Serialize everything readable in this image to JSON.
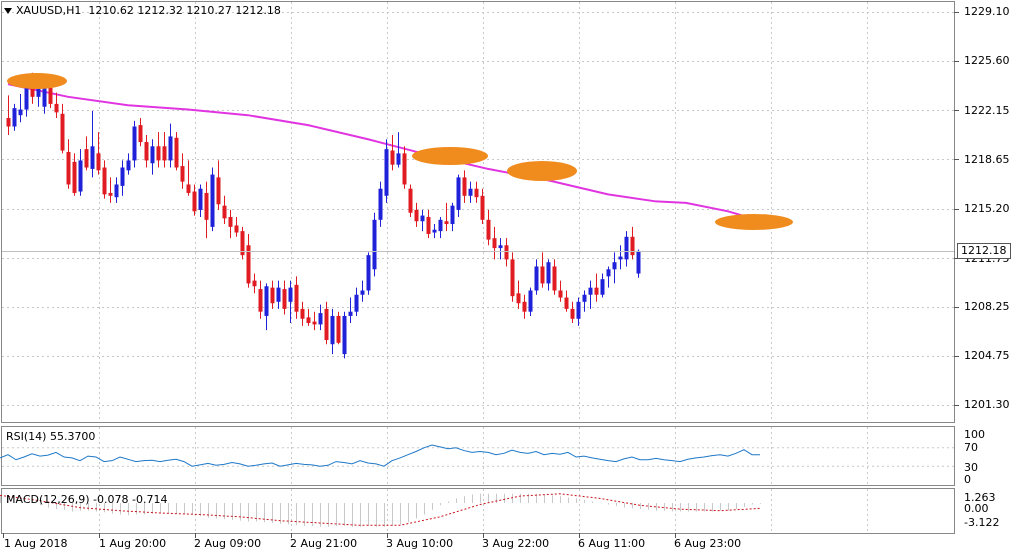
{
  "header": {
    "symbol": "XAUUSD,H1",
    "ohlc": "1210.62 1212.32 1210.27 1212.18"
  },
  "colors": {
    "bull": "#1f22d8",
    "bear": "#e01b22",
    "ma": "#e134e1",
    "highlight": "#f08c1e",
    "rsi": "#1e78c8",
    "macd_signal": "#c8141e",
    "macd_hist": "#c8c8c8"
  },
  "price_axis": [
    "1229.10",
    "1225.60",
    "1222.15",
    "1218.65",
    "1215.20",
    "1211.75",
    "1208.25",
    "1204.75",
    "1201.30"
  ],
  "current_price": "1212.18",
  "rsi": {
    "label": "RSI(14) 55.3700",
    "levels": [
      "100",
      "70",
      "30",
      "0"
    ]
  },
  "macd": {
    "label": "MACD(12,26,9) -0.078 -0.714",
    "levels": [
      "1.263",
      "0.00",
      "-3.122"
    ]
  },
  "time_axis": [
    "1 Aug 2018",
    "1 Aug 20:00",
    "2 Aug 09:00",
    "2 Aug 21:00",
    "3 Aug 10:00",
    "3 Aug 22:00",
    "6 Aug 11:00",
    "6 Aug 23:00"
  ],
  "chart_data": {
    "type": "candlestick",
    "ylim": [
      1201.3,
      1229.1
    ],
    "candles": [
      [
        1221.6,
        1223.2,
        1220.4,
        1221.0
      ],
      [
        1221.0,
        1222.6,
        1220.7,
        1222.3
      ],
      [
        1221.8,
        1223.3,
        1221.3,
        1222.2
      ],
      [
        1222.2,
        1224.7,
        1221.7,
        1224.2
      ],
      [
        1224.2,
        1224.8,
        1222.6,
        1223.1
      ],
      [
        1223.1,
        1224.3,
        1222.4,
        1223.8
      ],
      [
        1222.4,
        1224.6,
        1221.9,
        1224.4
      ],
      [
        1223.9,
        1224.7,
        1222.3,
        1222.6
      ],
      [
        1222.6,
        1223.4,
        1221.6,
        1222.0
      ],
      [
        1221.9,
        1222.6,
        1219.1,
        1219.3
      ],
      [
        1219.2,
        1220.1,
        1216.6,
        1216.9
      ],
      [
        1218.5,
        1219.1,
        1216.1,
        1216.3
      ],
      [
        1216.4,
        1219.4,
        1216.1,
        1218.6
      ],
      [
        1219.4,
        1220.3,
        1217.9,
        1218.1
      ],
      [
        1218.0,
        1222.1,
        1217.4,
        1219.6
      ],
      [
        1219.1,
        1220.6,
        1217.6,
        1217.9
      ],
      [
        1218.1,
        1218.6,
        1215.9,
        1216.2
      ],
      [
        1216.3,
        1217.4,
        1215.6,
        1216.1
      ],
      [
        1216.0,
        1217.4,
        1215.6,
        1216.9
      ],
      [
        1216.8,
        1218.6,
        1216.1,
        1218.1
      ],
      [
        1217.9,
        1219.1,
        1217.6,
        1218.6
      ],
      [
        1218.6,
        1221.4,
        1218.1,
        1221.0
      ],
      [
        1221.1,
        1221.6,
        1219.6,
        1219.9
      ],
      [
        1219.9,
        1220.4,
        1218.1,
        1218.6
      ],
      [
        1218.4,
        1220.1,
        1217.6,
        1219.6
      ],
      [
        1219.6,
        1220.6,
        1218.1,
        1218.6
      ],
      [
        1219.6,
        1220.6,
        1218.1,
        1218.6
      ],
      [
        1218.6,
        1221.2,
        1218.1,
        1220.3
      ],
      [
        1220.2,
        1220.6,
        1217.9,
        1218.1
      ],
      [
        1218.2,
        1219.1,
        1216.6,
        1217.1
      ],
      [
        1216.9,
        1218.6,
        1216.1,
        1216.3
      ],
      [
        1216.4,
        1216.9,
        1214.7,
        1215.0
      ],
      [
        1215.1,
        1216.9,
        1214.6,
        1216.6
      ],
      [
        1216.3,
        1217.1,
        1213.1,
        1214.4
      ],
      [
        1213.9,
        1218.1,
        1213.6,
        1217.6
      ],
      [
        1217.4,
        1218.6,
        1215.1,
        1215.5
      ],
      [
        1215.4,
        1216.1,
        1214.1,
        1214.5
      ],
      [
        1214.6,
        1215.1,
        1213.1,
        1213.9
      ],
      [
        1214.0,
        1214.6,
        1213.2,
        1213.5
      ],
      [
        1213.6,
        1213.9,
        1211.6,
        1211.9
      ],
      [
        1212.6,
        1213.4,
        1209.6,
        1209.9
      ],
      [
        1210.1,
        1210.6,
        1209.2,
        1209.7
      ],
      [
        1209.5,
        1210.1,
        1207.4,
        1207.9
      ],
      [
        1207.6,
        1209.9,
        1206.6,
        1209.7
      ],
      [
        1209.6,
        1210.1,
        1208.1,
        1208.5
      ],
      [
        1208.6,
        1210.1,
        1208.1,
        1209.6
      ],
      [
        1209.5,
        1210.1,
        1207.7,
        1208.1
      ],
      [
        1208.6,
        1210.1,
        1207.1,
        1209.6
      ],
      [
        1209.8,
        1210.4,
        1207.4,
        1207.9
      ],
      [
        1208.1,
        1208.6,
        1206.9,
        1207.4
      ],
      [
        1207.5,
        1208.1,
        1206.9,
        1207.1
      ],
      [
        1207.2,
        1207.9,
        1206.6,
        1207.0
      ],
      [
        1207.0,
        1208.4,
        1206.6,
        1207.8
      ],
      [
        1208.1,
        1208.6,
        1205.6,
        1205.9
      ],
      [
        1205.6,
        1208.1,
        1204.9,
        1207.6
      ],
      [
        1207.6,
        1207.9,
        1205.6,
        1205.7
      ],
      [
        1204.9,
        1207.9,
        1204.6,
        1207.6
      ],
      [
        1207.6,
        1208.9,
        1207.1,
        1207.9
      ],
      [
        1207.9,
        1209.6,
        1207.6,
        1209.1
      ],
      [
        1209.1,
        1210.1,
        1208.6,
        1209.4
      ],
      [
        1209.4,
        1212.1,
        1209.1,
        1211.9
      ],
      [
        1210.9,
        1214.9,
        1210.4,
        1214.4
      ],
      [
        1214.4,
        1217.1,
        1213.9,
        1216.6
      ],
      [
        1216.1,
        1220.1,
        1215.6,
        1219.4
      ],
      [
        1219.3,
        1220.4,
        1217.9,
        1218.3
      ],
      [
        1218.3,
        1220.6,
        1218.1,
        1219.1
      ],
      [
        1219.1,
        1219.6,
        1216.6,
        1216.9
      ],
      [
        1216.6,
        1216.9,
        1214.6,
        1214.9
      ],
      [
        1215.1,
        1215.6,
        1213.9,
        1214.3
      ],
      [
        1214.3,
        1215.1,
        1213.6,
        1214.7
      ],
      [
        1214.6,
        1215.1,
        1213.1,
        1213.4
      ],
      [
        1213.5,
        1214.1,
        1213.1,
        1213.7
      ],
      [
        1213.6,
        1214.6,
        1213.1,
        1214.4
      ],
      [
        1214.3,
        1215.6,
        1213.6,
        1214.1
      ],
      [
        1214.1,
        1215.6,
        1213.6,
        1215.4
      ],
      [
        1215.1,
        1217.6,
        1214.6,
        1217.4
      ],
      [
        1217.4,
        1217.9,
        1215.6,
        1216.1
      ],
      [
        1216.1,
        1217.1,
        1215.6,
        1216.6
      ],
      [
        1216.6,
        1217.1,
        1215.6,
        1216.0
      ],
      [
        1216.1,
        1216.6,
        1214.1,
        1214.4
      ],
      [
        1214.4,
        1215.1,
        1212.6,
        1213.0
      ],
      [
        1213.1,
        1213.9,
        1211.6,
        1212.4
      ],
      [
        1212.4,
        1213.1,
        1211.6,
        1212.6
      ],
      [
        1212.6,
        1213.1,
        1211.1,
        1211.6
      ],
      [
        1211.6,
        1212.1,
        1208.6,
        1209.0
      ],
      [
        1209.2,
        1210.1,
        1208.1,
        1208.5
      ],
      [
        1208.6,
        1209.1,
        1207.4,
        1207.9
      ],
      [
        1207.9,
        1209.6,
        1207.6,
        1209.4
      ],
      [
        1209.4,
        1211.6,
        1209.1,
        1211.1
      ],
      [
        1211.1,
        1212.1,
        1209.6,
        1209.9
      ],
      [
        1209.9,
        1211.6,
        1209.4,
        1211.4
      ],
      [
        1211.1,
        1211.6,
        1209.1,
        1209.4
      ],
      [
        1209.4,
        1210.1,
        1208.6,
        1208.9
      ],
      [
        1208.9,
        1209.4,
        1207.9,
        1208.1
      ],
      [
        1208.1,
        1208.6,
        1207.1,
        1207.4
      ],
      [
        1207.4,
        1208.9,
        1206.9,
        1208.6
      ],
      [
        1208.6,
        1209.4,
        1207.9,
        1209.1
      ],
      [
        1209.1,
        1210.1,
        1208.1,
        1209.6
      ],
      [
        1209.6,
        1210.6,
        1208.6,
        1209.1
      ],
      [
        1209.1,
        1210.6,
        1208.9,
        1210.2
      ],
      [
        1210.4,
        1211.1,
        1209.6,
        1210.9
      ],
      [
        1210.9,
        1212.1,
        1209.9,
        1211.4
      ],
      [
        1211.6,
        1212.6,
        1210.9,
        1211.8
      ],
      [
        1211.6,
        1213.6,
        1211.1,
        1213.2
      ],
      [
        1213.2,
        1213.9,
        1211.6,
        1211.9
      ],
      [
        1210.6,
        1212.3,
        1210.3,
        1212.2
      ]
    ],
    "ma": [
      [
        0,
        1224.0
      ],
      [
        10,
        1223.1
      ],
      [
        20,
        1222.5
      ],
      [
        30,
        1222.2
      ],
      [
        40,
        1221.8
      ],
      [
        50,
        1221.1
      ],
      [
        60,
        1220.1
      ],
      [
        70,
        1219.0
      ],
      [
        80,
        1218.0
      ],
      [
        90,
        1217.2
      ],
      [
        100,
        1216.2
      ],
      [
        108,
        1215.7
      ],
      [
        113,
        1215.6
      ],
      [
        120,
        1215.0
      ],
      [
        124,
        1214.5
      ],
      [
        128,
        1214.3
      ]
    ],
    "rsi": [
      [
        0,
        48
      ],
      [
        8,
        55
      ],
      [
        16,
        44
      ],
      [
        24,
        50
      ],
      [
        32,
        57
      ],
      [
        40,
        52
      ],
      [
        48,
        54
      ],
      [
        56,
        60
      ],
      [
        64,
        50
      ],
      [
        72,
        48
      ],
      [
        80,
        42
      ],
      [
        88,
        52
      ],
      [
        96,
        50
      ],
      [
        104,
        40
      ],
      [
        112,
        42
      ],
      [
        120,
        50
      ],
      [
        128,
        45
      ],
      [
        136,
        40
      ],
      [
        144,
        42
      ],
      [
        152,
        43
      ],
      [
        160,
        40
      ],
      [
        168,
        43
      ],
      [
        176,
        45
      ],
      [
        184,
        40
      ],
      [
        192,
        30
      ],
      [
        200,
        33
      ],
      [
        208,
        36
      ],
      [
        216,
        32
      ],
      [
        224,
        34
      ],
      [
        232,
        38
      ],
      [
        240,
        35
      ],
      [
        248,
        30
      ],
      [
        256,
        32
      ],
      [
        264,
        35
      ],
      [
        272,
        37
      ],
      [
        280,
        30
      ],
      [
        288,
        33
      ],
      [
        296,
        36
      ],
      [
        304,
        34
      ],
      [
        312,
        33
      ],
      [
        320,
        30
      ],
      [
        328,
        32
      ],
      [
        336,
        40
      ],
      [
        344,
        38
      ],
      [
        352,
        35
      ],
      [
        360,
        42
      ],
      [
        368,
        37
      ],
      [
        376,
        35
      ],
      [
        384,
        30
      ],
      [
        392,
        42
      ],
      [
        400,
        48
      ],
      [
        408,
        55
      ],
      [
        416,
        62
      ],
      [
        424,
        70
      ],
      [
        432,
        76
      ],
      [
        440,
        72
      ],
      [
        448,
        68
      ],
      [
        456,
        70
      ],
      [
        464,
        64
      ],
      [
        472,
        60
      ],
      [
        480,
        62
      ],
      [
        488,
        60
      ],
      [
        496,
        55
      ],
      [
        504,
        58
      ],
      [
        512,
        65
      ],
      [
        520,
        60
      ],
      [
        528,
        58
      ],
      [
        536,
        62
      ],
      [
        544,
        55
      ],
      [
        552,
        58
      ],
      [
        560,
        56
      ],
      [
        568,
        60
      ],
      [
        576,
        50
      ],
      [
        584,
        52
      ],
      [
        592,
        48
      ],
      [
        600,
        45
      ],
      [
        608,
        42
      ],
      [
        616,
        40
      ],
      [
        624,
        46
      ],
      [
        632,
        50
      ],
      [
        640,
        44
      ],
      [
        648,
        44
      ],
      [
        656,
        47
      ],
      [
        664,
        44
      ],
      [
        672,
        42
      ],
      [
        680,
        40
      ],
      [
        688,
        45
      ],
      [
        696,
        48
      ],
      [
        704,
        50
      ],
      [
        712,
        53
      ],
      [
        720,
        55
      ],
      [
        728,
        52
      ],
      [
        736,
        58
      ],
      [
        744,
        66
      ],
      [
        752,
        55
      ],
      [
        760,
        55
      ]
    ],
    "macd_hist": [
      [
        0,
        0.9
      ],
      [
        8,
        1.0
      ],
      [
        16,
        0.5
      ],
      [
        24,
        0.2
      ],
      [
        32,
        0.0
      ],
      [
        40,
        -0.3
      ],
      [
        48,
        -0.6
      ],
      [
        56,
        -0.8
      ],
      [
        64,
        -0.9
      ],
      [
        72,
        -1.1
      ],
      [
        80,
        -1.0
      ],
      [
        88,
        -1.0
      ],
      [
        96,
        -1.1
      ],
      [
        104,
        -1.2
      ],
      [
        112,
        -1.4
      ],
      [
        120,
        -1.5
      ],
      [
        128,
        -1.6
      ],
      [
        136,
        -1.5
      ],
      [
        144,
        -1.5
      ],
      [
        152,
        -1.4
      ],
      [
        160,
        -1.3
      ],
      [
        168,
        -1.3
      ],
      [
        176,
        -1.4
      ],
      [
        184,
        -1.4
      ],
      [
        192,
        -1.5
      ],
      [
        200,
        -1.7
      ],
      [
        208,
        -1.9
      ],
      [
        216,
        -2.0
      ],
      [
        224,
        -2.1
      ],
      [
        232,
        -2.2
      ],
      [
        240,
        -2.3
      ],
      [
        248,
        -2.4
      ],
      [
        256,
        -2.4
      ],
      [
        264,
        -2.5
      ],
      [
        272,
        -2.6
      ],
      [
        280,
        -2.7
      ],
      [
        288,
        -2.8
      ],
      [
        296,
        -2.9
      ],
      [
        304,
        -3.0
      ],
      [
        312,
        -3.0
      ],
      [
        320,
        -3.1
      ],
      [
        328,
        -3.1
      ],
      [
        336,
        -3.0
      ],
      [
        344,
        -3.0
      ],
      [
        352,
        -3.1
      ],
      [
        360,
        -3.1
      ],
      [
        368,
        -3.0
      ],
      [
        376,
        -3.1
      ],
      [
        384,
        -3.1
      ],
      [
        392,
        -3.0
      ],
      [
        400,
        -2.8
      ],
      [
        408,
        -2.5
      ],
      [
        416,
        -2.0
      ],
      [
        424,
        -1.5
      ],
      [
        432,
        -0.9
      ],
      [
        440,
        -0.3
      ],
      [
        448,
        0.2
      ],
      [
        456,
        0.6
      ],
      [
        464,
        0.9
      ],
      [
        472,
        1.1
      ],
      [
        480,
        1.2
      ],
      [
        488,
        1.2
      ],
      [
        496,
        1.2
      ],
      [
        504,
        1.2
      ],
      [
        512,
        1.2
      ],
      [
        520,
        1.2
      ],
      [
        528,
        1.2
      ],
      [
        536,
        1.2
      ],
      [
        544,
        1.1
      ],
      [
        552,
        1.0
      ],
      [
        560,
        0.9
      ],
      [
        568,
        0.7
      ],
      [
        576,
        0.6
      ],
      [
        584,
        0.4
      ],
      [
        592,
        0.2
      ],
      [
        600,
        0.0
      ],
      [
        608,
        -0.2
      ],
      [
        616,
        -0.4
      ],
      [
        624,
        -0.6
      ],
      [
        632,
        -0.7
      ],
      [
        640,
        -0.8
      ],
      [
        648,
        -0.9
      ],
      [
        656,
        -1.0
      ],
      [
        664,
        -1.0
      ],
      [
        672,
        -1.1
      ],
      [
        680,
        -1.1
      ],
      [
        688,
        -1.1
      ],
      [
        696,
        -1.1
      ],
      [
        704,
        -1.1
      ],
      [
        712,
        -1.1
      ],
      [
        720,
        -1.0
      ],
      [
        728,
        -1.0
      ],
      [
        736,
        -0.8
      ],
      [
        744,
        -0.5
      ],
      [
        752,
        -0.2
      ],
      [
        760,
        -0.1
      ]
    ],
    "macd_signal": [
      [
        0,
        1.0
      ],
      [
        40,
        0.3
      ],
      [
        80,
        -0.6
      ],
      [
        120,
        -1.0
      ],
      [
        160,
        -1.3
      ],
      [
        200,
        -1.5
      ],
      [
        240,
        -1.8
      ],
      [
        280,
        -2.3
      ],
      [
        320,
        -2.6
      ],
      [
        360,
        -2.9
      ],
      [
        400,
        -2.9
      ],
      [
        440,
        -1.8
      ],
      [
        480,
        -0.2
      ],
      [
        520,
        0.9
      ],
      [
        560,
        1.2
      ],
      [
        600,
        0.6
      ],
      [
        640,
        -0.3
      ],
      [
        680,
        -0.8
      ],
      [
        720,
        -1.0
      ],
      [
        760,
        -0.7
      ]
    ]
  }
}
